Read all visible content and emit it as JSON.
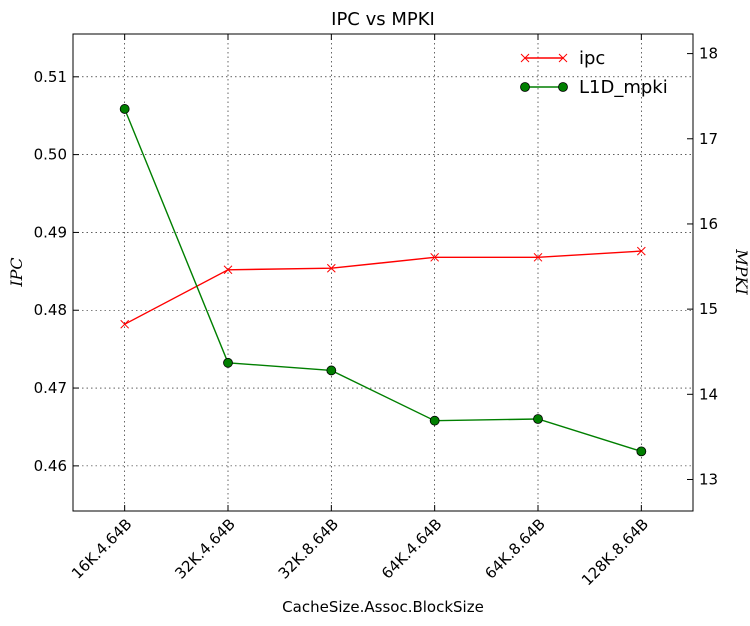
{
  "chart_data": {
    "type": "line",
    "title": "IPC vs MPKI",
    "xlabel": "CacheSize.Assoc.BlockSize",
    "ylabel_left": "IPC",
    "ylabel_right": "MPKI",
    "categories": [
      "16K.4.64B",
      "32K.4.64B",
      "32K.8.64B",
      "64K.4.64B",
      "64K.8.64B",
      "128K.8.64B"
    ],
    "grid": true,
    "legend": "top-right",
    "y_left": {
      "min": 0.4542,
      "max": 0.5155,
      "ticks": [
        "0.46",
        "0.47",
        "0.48",
        "0.49",
        "0.50",
        "0.51"
      ]
    },
    "y_right": {
      "min": 12.63,
      "max": 18.23,
      "ticks": [
        "13",
        "14",
        "15",
        "16",
        "17",
        "18"
      ]
    },
    "series": [
      {
        "name": "ipc",
        "axis": "left",
        "color": "#ff0000",
        "marker": "x",
        "values": [
          0.4782,
          0.4852,
          0.4854,
          0.4868,
          0.4868,
          0.4876
        ]
      },
      {
        "name": "L1D_mpki",
        "axis": "right",
        "color": "#007f00",
        "marker": "o",
        "values": [
          17.35,
          14.37,
          14.28,
          13.69,
          13.71,
          13.33
        ]
      }
    ]
  }
}
